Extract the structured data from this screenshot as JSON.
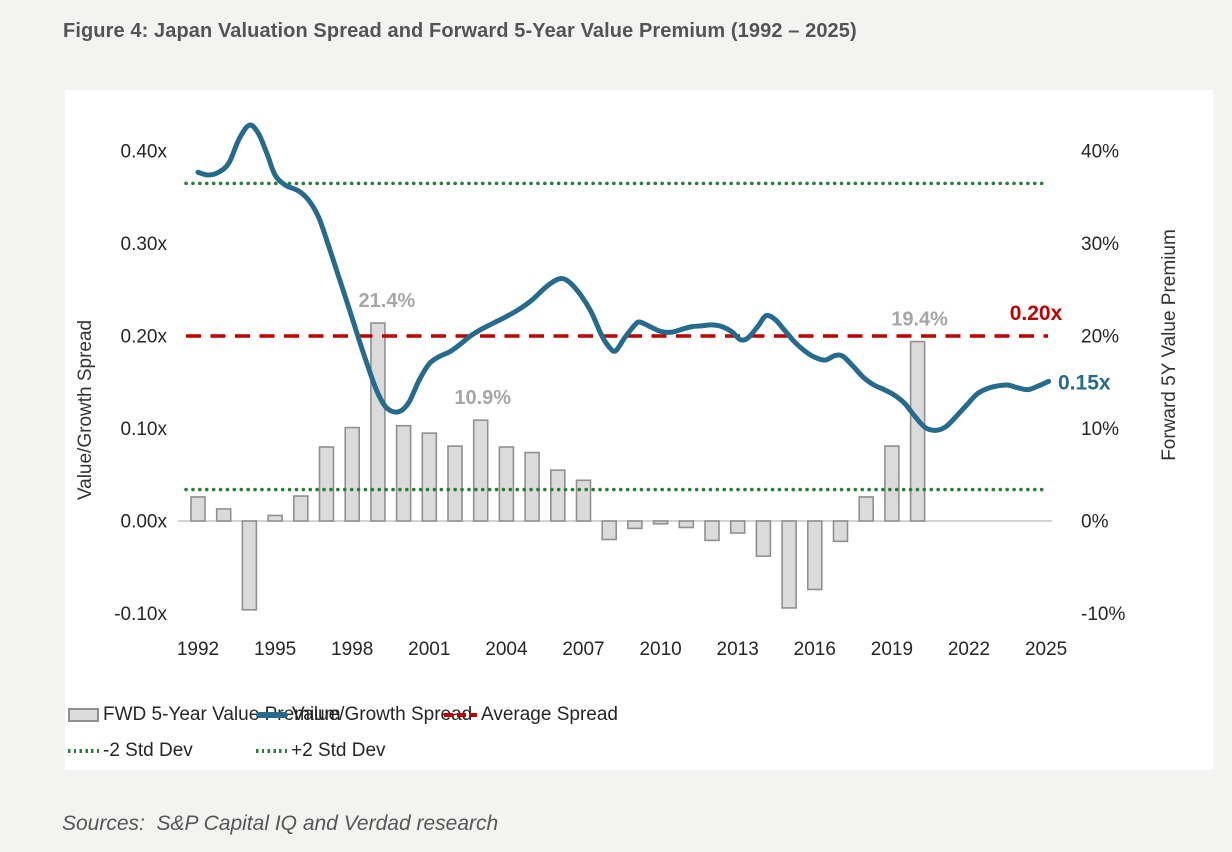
{
  "figure": {
    "title": "Figure 4: Japan Valuation Spread and Forward 5-Year Value Premium (1992 – 2025)",
    "sources": "Sources:  S&P Capital IQ and Verdad research"
  },
  "colors": {
    "line_blue": "#276b8c",
    "average_red": "#c00000",
    "stddev_green": "#2a7e3b",
    "bar_fill": "#dbdbdb",
    "bar_border": "#909090",
    "annotation_gray": "#a6a6a6",
    "tick_text": "#262626",
    "zero_line": "#c6c6c6"
  },
  "chart_data": {
    "type": "combo_bar_line",
    "title": "Japan Valuation Spread and Forward 5-Year Value Premium",
    "x_axis": {
      "tick_years": [
        "1992",
        "1995",
        "1998",
        "2001",
        "2004",
        "2007",
        "2010",
        "2013",
        "2016",
        "2019",
        "2022",
        "2025"
      ]
    },
    "left_axis": {
      "label": "Value/Growth Spread",
      "tick_labels": [
        "0.40x",
        "0.30x",
        "0.20x",
        "0.10x",
        "0.00x",
        "-0.10x"
      ],
      "tick_values": [
        0.4,
        0.3,
        0.2,
        0.1,
        0.0,
        -0.1
      ],
      "range": [
        -0.1,
        0.45
      ]
    },
    "right_axis": {
      "label": "Forward 5Y Value Premium",
      "tick_labels": [
        "40%",
        "30%",
        "20%",
        "10%",
        "0%",
        "-10%"
      ],
      "tick_values": [
        40,
        30,
        20,
        10,
        0,
        -10
      ],
      "range": [
        -10,
        45
      ]
    },
    "grid": false,
    "bars": {
      "name": "FWD 5-Year Value Premium",
      "unit": "percent",
      "data": [
        [
          1992,
          2.6
        ],
        [
          1993,
          1.3
        ],
        [
          1994,
          -9.6
        ],
        [
          1995,
          0.6
        ],
        [
          1996,
          2.7
        ],
        [
          1997,
          8.0
        ],
        [
          1998,
          10.1
        ],
        [
          1999,
          21.4
        ],
        [
          2000,
          10.3
        ],
        [
          2001,
          9.5
        ],
        [
          2002,
          8.1
        ],
        [
          2003,
          10.9
        ],
        [
          2004,
          8.0
        ],
        [
          2005,
          7.4
        ],
        [
          2006,
          5.5
        ],
        [
          2007,
          4.4
        ],
        [
          2008,
          -2.0
        ],
        [
          2009,
          -0.8
        ],
        [
          2010,
          -0.3
        ],
        [
          2011,
          -0.7
        ],
        [
          2012,
          -2.1
        ],
        [
          2013,
          -1.3
        ],
        [
          2014,
          -3.8
        ],
        [
          2015,
          -9.4
        ],
        [
          2016,
          -7.4
        ],
        [
          2017,
          -2.2
        ],
        [
          2018,
          2.6
        ],
        [
          2019,
          8.1
        ],
        [
          2020,
          19.4
        ]
      ]
    },
    "line": {
      "name": "Value/Growth Spread",
      "unit": "x (spread multiple)",
      "points": [
        [
          1992.0,
          0.377
        ],
        [
          1992.4,
          0.374
        ],
        [
          1992.8,
          0.377
        ],
        [
          1993.2,
          0.387
        ],
        [
          1993.6,
          0.413
        ],
        [
          1994.0,
          0.428
        ],
        [
          1994.35,
          0.419
        ],
        [
          1994.7,
          0.396
        ],
        [
          1995.0,
          0.374
        ],
        [
          1995.4,
          0.363
        ],
        [
          1995.9,
          0.357
        ],
        [
          1996.3,
          0.347
        ],
        [
          1996.7,
          0.328
        ],
        [
          1997.1,
          0.296
        ],
        [
          1997.5,
          0.262
        ],
        [
          1997.9,
          0.228
        ],
        [
          1998.3,
          0.193
        ],
        [
          1998.7,
          0.16
        ],
        [
          1999.0,
          0.138
        ],
        [
          1999.35,
          0.122
        ],
        [
          1999.8,
          0.118
        ],
        [
          2000.2,
          0.128
        ],
        [
          2000.6,
          0.152
        ],
        [
          2001.0,
          0.17
        ],
        [
          2001.4,
          0.178
        ],
        [
          2001.8,
          0.183
        ],
        [
          2002.2,
          0.191
        ],
        [
          2002.6,
          0.2
        ],
        [
          2003.0,
          0.207
        ],
        [
          2003.5,
          0.214
        ],
        [
          2004.0,
          0.221
        ],
        [
          2004.5,
          0.229
        ],
        [
          2005.0,
          0.239
        ],
        [
          2005.5,
          0.252
        ],
        [
          2005.9,
          0.26
        ],
        [
          2006.2,
          0.262
        ],
        [
          2006.5,
          0.257
        ],
        [
          2006.9,
          0.244
        ],
        [
          2007.3,
          0.226
        ],
        [
          2007.7,
          0.201
        ],
        [
          2008.0,
          0.188
        ],
        [
          2008.25,
          0.184
        ],
        [
          2008.6,
          0.198
        ],
        [
          2009.0,
          0.212
        ],
        [
          2009.2,
          0.215
        ],
        [
          2009.6,
          0.21
        ],
        [
          2010.0,
          0.205
        ],
        [
          2010.4,
          0.204
        ],
        [
          2010.8,
          0.207
        ],
        [
          2011.2,
          0.21
        ],
        [
          2011.6,
          0.211
        ],
        [
          2012.0,
          0.212
        ],
        [
          2012.4,
          0.21
        ],
        [
          2012.8,
          0.204
        ],
        [
          2013.1,
          0.196
        ],
        [
          2013.4,
          0.198
        ],
        [
          2013.8,
          0.211
        ],
        [
          2014.1,
          0.222
        ],
        [
          2014.45,
          0.218
        ],
        [
          2014.8,
          0.207
        ],
        [
          2015.2,
          0.194
        ],
        [
          2015.6,
          0.184
        ],
        [
          2016.0,
          0.177
        ],
        [
          2016.4,
          0.174
        ],
        [
          2016.8,
          0.179
        ],
        [
          2017.1,
          0.178
        ],
        [
          2017.5,
          0.167
        ],
        [
          2017.9,
          0.155
        ],
        [
          2018.3,
          0.147
        ],
        [
          2018.7,
          0.142
        ],
        [
          2019.1,
          0.136
        ],
        [
          2019.5,
          0.127
        ],
        [
          2019.9,
          0.113
        ],
        [
          2020.3,
          0.101
        ],
        [
          2020.7,
          0.098
        ],
        [
          2021.1,
          0.102
        ],
        [
          2021.5,
          0.113
        ],
        [
          2021.9,
          0.125
        ],
        [
          2022.3,
          0.137
        ],
        [
          2022.7,
          0.143
        ],
        [
          2023.1,
          0.146
        ],
        [
          2023.5,
          0.147
        ],
        [
          2023.9,
          0.144
        ],
        [
          2024.3,
          0.142
        ],
        [
          2024.7,
          0.146
        ],
        [
          2025.1,
          0.151
        ]
      ]
    },
    "average_spread": {
      "name": "Average Spread",
      "value": 0.2,
      "label": "0.20x"
    },
    "std_dev_lines": {
      "plus2": {
        "name": "+2 Std Dev",
        "value": 0.365
      },
      "minus2": {
        "name": "-2 Std Dev",
        "value": 0.034
      }
    },
    "bar_annotations": [
      {
        "year": 1999,
        "text": "21.4%"
      },
      {
        "year": 2003,
        "text": "10.9%"
      },
      {
        "year": 2020,
        "text": "19.4%"
      }
    ],
    "line_end_label": {
      "text": "0.15x",
      "value": 0.15
    }
  },
  "legend": {
    "items": [
      {
        "swatch": "bar",
        "label": "FWD 5-Year Value Premium"
      },
      {
        "swatch": "line",
        "label": "Value/Growth Spread"
      },
      {
        "swatch": "dash",
        "label": "Average Spread"
      },
      {
        "swatch": "dot",
        "label": "-2 Std Dev"
      },
      {
        "swatch": "dot",
        "label": "+2 Std Dev"
      }
    ]
  }
}
